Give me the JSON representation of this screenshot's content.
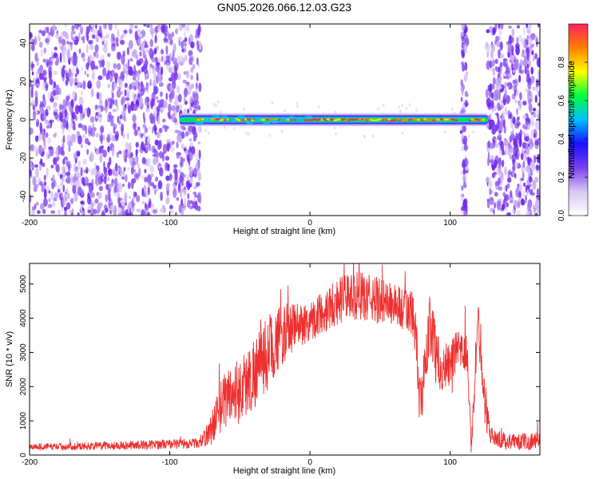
{
  "title": "GN05.2026.066.12.03.G23",
  "chart_data": [
    {
      "type": "heatmap",
      "title": "GN05.2026.066.12.03.G23",
      "xlabel": "Height of straight line (km)",
      "ylabel": "Frequency (Hz)",
      "xlim": [
        -200,
        164
      ],
      "ylim": [
        -50,
        50
      ],
      "xticks": [
        -200,
        -100,
        0,
        100
      ],
      "yticks": [
        -40,
        -20,
        0,
        20,
        40
      ],
      "grid": false,
      "colorbar": {
        "label": "Normalized spectral amplitude",
        "range": [
          0,
          1
        ],
        "ticks": [
          0.0,
          0.2,
          0.4,
          0.6,
          0.8
        ],
        "colormap": [
          "#ffffff",
          "#d6c8f2",
          "#7b3ff0",
          "#1a10ff",
          "#00c0ff",
          "#00ff40",
          "#ffff00",
          "#ff8000",
          "#ff2060"
        ]
      },
      "regions": {
        "noise_left_km": [
          -200,
          -78
        ],
        "signal_km": [
          -95,
          127
        ],
        "noise_right_km": [
          108,
          164
        ],
        "carrier_frequency_hz": 0
      }
    },
    {
      "type": "line",
      "xlabel": "Height of straight line (km)",
      "ylabel": "SNR (10 * v/v)",
      "xlim": [
        -200,
        164
      ],
      "ylim": [
        0,
        5600
      ],
      "xticks": [
        -200,
        -100,
        0,
        100
      ],
      "yticks": [
        0,
        1000,
        2000,
        3000,
        4000,
        5000
      ],
      "grid": false,
      "series": [
        {
          "name": "SNR",
          "color": "#ee3030",
          "x": [
            -200,
            -180,
            -160,
            -140,
            -120,
            -100,
            -90,
            -80,
            -75,
            -70,
            -65,
            -60,
            -55,
            -50,
            -45,
            -40,
            -35,
            -30,
            -25,
            -20,
            -15,
            -10,
            -5,
            0,
            5,
            10,
            15,
            20,
            25,
            30,
            35,
            40,
            45,
            50,
            55,
            60,
            65,
            70,
            75,
            78,
            80,
            85,
            88,
            90,
            95,
            100,
            105,
            110,
            112,
            115,
            118,
            120,
            122,
            125,
            128,
            130,
            135,
            140,
            150,
            160,
            164
          ],
          "values": [
            250,
            250,
            260,
            280,
            300,
            320,
            330,
            350,
            500,
            800,
            1300,
            1700,
            1800,
            1900,
            2100,
            2400,
            2700,
            3000,
            3300,
            3500,
            3650,
            3750,
            3850,
            3900,
            4050,
            4200,
            4400,
            4500,
            4600,
            4650,
            4650,
            4600,
            4550,
            4500,
            4450,
            4400,
            4300,
            4200,
            3900,
            1600,
            1700,
            3800,
            3600,
            2800,
            2500,
            2700,
            3000,
            3000,
            3100,
            200,
            2500,
            3800,
            3100,
            1500,
            700,
            550,
            450,
            400,
            380,
            420,
            450
          ],
          "noise_amplitude": [
            100,
            100,
            110,
            120,
            130,
            140,
            150,
            150,
            250,
            500,
            700,
            900,
            900,
            1000,
            1000,
            1100,
            1100,
            1100,
            1000,
            900,
            800,
            700,
            650,
            600,
            600,
            650,
            700,
            700,
            700,
            700,
            700,
            700,
            700,
            700,
            650,
            650,
            650,
            700,
            900,
            700,
            700,
            900,
            900,
            800,
            700,
            700,
            600,
            600,
            600,
            200,
            700,
            700,
            800,
            700,
            300,
            250,
            250,
            250,
            250,
            250,
            250
          ]
        }
      ]
    }
  ]
}
